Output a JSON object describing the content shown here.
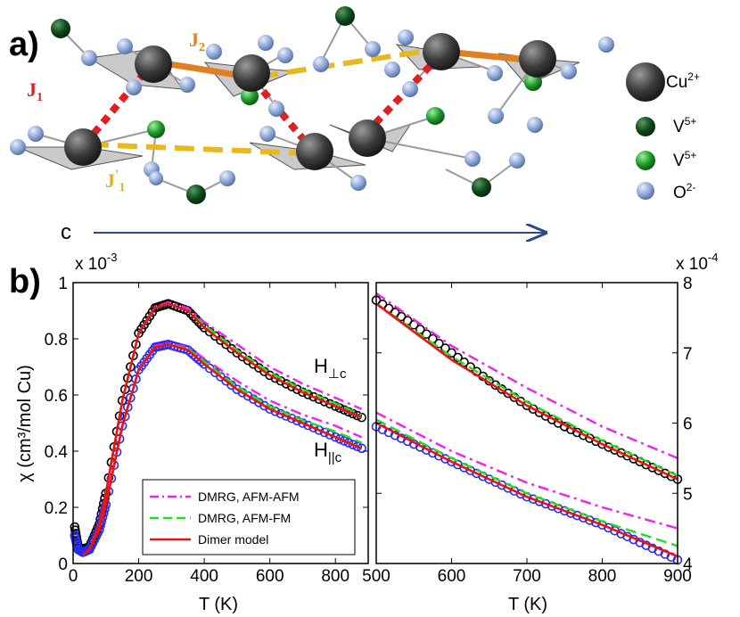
{
  "panel_a": {
    "label": "a)",
    "bond_labels": [
      {
        "main": "J",
        "sub": "1",
        "sup": "",
        "color": "#e02020"
      },
      {
        "main": "J",
        "sub": "2",
        "sup": "",
        "color": "#e08020"
      },
      {
        "main": "J",
        "sub": "1",
        "sup": "'",
        "color": "#e0b020"
      }
    ],
    "axis_label": "c",
    "atom_legend": [
      {
        "base": "Cu",
        "charge": "2+",
        "color": "#3a3a3a",
        "icon": "large-gray-sphere"
      },
      {
        "base": "V",
        "charge": "5+",
        "color": "#0f4a1a",
        "icon": "dark-green-sphere"
      },
      {
        "base": "V",
        "charge": "5+",
        "color": "#1e9a2a",
        "icon": "green-sphere"
      },
      {
        "base": "O",
        "charge": "2-",
        "color": "#8fa8d8",
        "icon": "light-blue-sphere"
      }
    ]
  },
  "panel_b": {
    "label": "b)",
    "ylabel_left": "χ (cm³/mol Cu)",
    "xlabel": "T (K)",
    "left_multiplier": {
      "base": "x 10",
      "exp": "-3"
    },
    "right_multiplier": {
      "base": "x 10",
      "exp": "-4"
    },
    "annotations": [
      {
        "main": "H",
        "sub": "⊥c"
      },
      {
        "main": "H",
        "sub": "||c"
      }
    ],
    "legend": [
      {
        "label": "DMRG, AFM-AFM",
        "color": "#ee22ee",
        "style": "dashdot"
      },
      {
        "label": "DMRG, AFM-FM",
        "color": "#22dd22",
        "style": "dashed"
      },
      {
        "label": "Dimer model",
        "color": "#ee1111",
        "style": "solid"
      }
    ]
  },
  "chart_data": [
    {
      "type": "line",
      "xlabel": "T (K)",
      "ylabel": "χ (cm³/mol Cu)",
      "xlim": [
        0,
        900
      ],
      "ylim": [
        0,
        1
      ],
      "y_scale_factor": "x 10^-3",
      "x_ticks": [
        "0",
        "200",
        "400",
        "600",
        "800"
      ],
      "y_ticks": [
        "0",
        "0.2",
        "0.4",
        "0.6",
        "0.8",
        "1"
      ],
      "grid": false,
      "legend_position": "bottom-left",
      "series": [
        {
          "name": "",
          "group": "H⊥c data",
          "color": "#000000",
          "style": "markers",
          "x": [
            5,
            15,
            30,
            50,
            80,
            100,
            150,
            200,
            250,
            290,
            350,
            400,
            500,
            600,
            700,
            800,
            880
          ],
          "y": [
            0.13,
            0.06,
            0.05,
            0.06,
            0.14,
            0.25,
            0.58,
            0.82,
            0.91,
            0.925,
            0.9,
            0.84,
            0.75,
            0.67,
            0.61,
            0.56,
            0.52
          ]
        },
        {
          "name": "",
          "group": "H||c data",
          "color": "#2a2aee",
          "style": "markers",
          "x": [
            5,
            15,
            30,
            50,
            80,
            100,
            150,
            200,
            250,
            290,
            350,
            400,
            500,
            600,
            700,
            800,
            880
          ],
          "y": [
            0.1,
            0.05,
            0.04,
            0.05,
            0.12,
            0.21,
            0.49,
            0.69,
            0.77,
            0.78,
            0.76,
            0.71,
            0.62,
            0.55,
            0.5,
            0.45,
            0.41
          ]
        },
        {
          "name": "DMRG, AFM-AFM",
          "group": "H⊥c",
          "color": "#ee22ee",
          "style": "dashdot",
          "x": [
            30,
            50,
            80,
            100,
            150,
            200,
            250,
            290,
            350,
            400,
            500,
            600,
            700,
            800,
            880
          ],
          "y": [
            0.03,
            0.05,
            0.14,
            0.25,
            0.58,
            0.82,
            0.915,
            0.93,
            0.91,
            0.86,
            0.78,
            0.7,
            0.64,
            0.59,
            0.55
          ]
        },
        {
          "name": "DMRG, AFM-FM",
          "group": "H⊥c",
          "color": "#22dd22",
          "style": "dashed",
          "x": [
            30,
            50,
            80,
            100,
            150,
            200,
            250,
            290,
            350,
            400,
            500,
            600,
            700,
            800,
            880
          ],
          "y": [
            0.03,
            0.05,
            0.14,
            0.25,
            0.58,
            0.82,
            0.91,
            0.925,
            0.9,
            0.85,
            0.76,
            0.68,
            0.62,
            0.57,
            0.53
          ]
        },
        {
          "name": "Dimer model",
          "group": "H⊥c",
          "color": "#ee1111",
          "style": "solid",
          "x": [
            30,
            50,
            80,
            100,
            150,
            200,
            250,
            290,
            350,
            400,
            500,
            600,
            700,
            800,
            880
          ],
          "y": [
            0.03,
            0.05,
            0.14,
            0.25,
            0.58,
            0.82,
            0.91,
            0.925,
            0.9,
            0.84,
            0.75,
            0.67,
            0.61,
            0.56,
            0.52
          ]
        },
        {
          "name": "DMRG, AFM-AFM",
          "group": "H||c",
          "color": "#ee22ee",
          "style": "dashdot",
          "x": [
            30,
            50,
            80,
            100,
            150,
            200,
            250,
            290,
            350,
            400,
            500,
            600,
            700,
            800,
            880
          ],
          "y": [
            0.03,
            0.05,
            0.12,
            0.21,
            0.49,
            0.69,
            0.775,
            0.785,
            0.77,
            0.73,
            0.65,
            0.58,
            0.53,
            0.49,
            0.45
          ]
        },
        {
          "name": "DMRG, AFM-FM",
          "group": "H||c",
          "color": "#22dd22",
          "style": "dashed",
          "x": [
            30,
            50,
            80,
            100,
            150,
            200,
            250,
            290,
            350,
            400,
            500,
            600,
            700,
            800,
            880
          ],
          "y": [
            0.03,
            0.05,
            0.12,
            0.21,
            0.49,
            0.69,
            0.77,
            0.78,
            0.765,
            0.72,
            0.63,
            0.56,
            0.51,
            0.47,
            0.43
          ]
        },
        {
          "name": "Dimer model",
          "group": "H||c",
          "color": "#ee1111",
          "style": "solid",
          "x": [
            30,
            50,
            80,
            100,
            150,
            200,
            250,
            290,
            350,
            400,
            500,
            600,
            700,
            800,
            880
          ],
          "y": [
            0.03,
            0.05,
            0.12,
            0.21,
            0.49,
            0.69,
            0.77,
            0.78,
            0.76,
            0.71,
            0.62,
            0.55,
            0.5,
            0.45,
            0.41
          ]
        }
      ]
    },
    {
      "type": "line",
      "xlabel": "T (K)",
      "xlim": [
        500,
        900
      ],
      "ylim": [
        4,
        8
      ],
      "y_scale_factor": "x 10^-4",
      "x_ticks": [
        "500",
        "600",
        "700",
        "800",
        "900"
      ],
      "y_ticks": [
        "4",
        "5",
        "6",
        "7",
        "8"
      ],
      "y_axis_side": "right",
      "grid": false,
      "series": [
        {
          "name": "",
          "group": "H⊥c data",
          "color": "#000000",
          "style": "markers",
          "x": [
            500,
            550,
            600,
            650,
            700,
            750,
            800,
            850,
            900
          ],
          "y": [
            7.75,
            7.4,
            7.0,
            6.6,
            6.25,
            5.95,
            5.7,
            5.45,
            5.2
          ]
        },
        {
          "name": "",
          "group": "H||c data",
          "color": "#2a2aee",
          "style": "markers",
          "x": [
            500,
            550,
            600,
            650,
            700,
            750,
            800,
            850,
            900
          ],
          "y": [
            5.95,
            5.7,
            5.45,
            5.2,
            4.95,
            4.75,
            4.55,
            4.3,
            4.05
          ]
        },
        {
          "name": "DMRG, AFM-AFM",
          "group": "H⊥c",
          "color": "#ee22ee",
          "style": "dashdot",
          "x": [
            500,
            600,
            700,
            800,
            900
          ],
          "y": [
            7.85,
            7.1,
            6.5,
            5.95,
            5.5
          ]
        },
        {
          "name": "DMRG, AFM-FM",
          "group": "H⊥c",
          "color": "#22dd22",
          "style": "dashed",
          "x": [
            500,
            600,
            700,
            800,
            900
          ],
          "y": [
            7.7,
            6.95,
            6.3,
            5.75,
            5.25
          ]
        },
        {
          "name": "Dimer model",
          "group": "H⊥c",
          "color": "#ee1111",
          "style": "solid",
          "x": [
            500,
            600,
            700,
            800,
            900
          ],
          "y": [
            7.7,
            6.9,
            6.25,
            5.7,
            5.2
          ]
        },
        {
          "name": "DMRG, AFM-AFM",
          "group": "H||c",
          "color": "#ee22ee",
          "style": "dashdot",
          "x": [
            500,
            600,
            700,
            800,
            900
          ],
          "y": [
            6.15,
            5.6,
            5.15,
            4.8,
            4.5
          ]
        },
        {
          "name": "DMRG, AFM-FM",
          "group": "H||c",
          "color": "#22dd22",
          "style": "dashed",
          "x": [
            500,
            600,
            700,
            800,
            900
          ],
          "y": [
            6.05,
            5.5,
            5.0,
            4.6,
            4.25
          ]
        },
        {
          "name": "Dimer model",
          "group": "H||c",
          "color": "#ee1111",
          "style": "solid",
          "x": [
            500,
            600,
            700,
            800,
            900
          ],
          "y": [
            6.0,
            5.45,
            4.95,
            4.55,
            4.1
          ]
        }
      ]
    }
  ]
}
